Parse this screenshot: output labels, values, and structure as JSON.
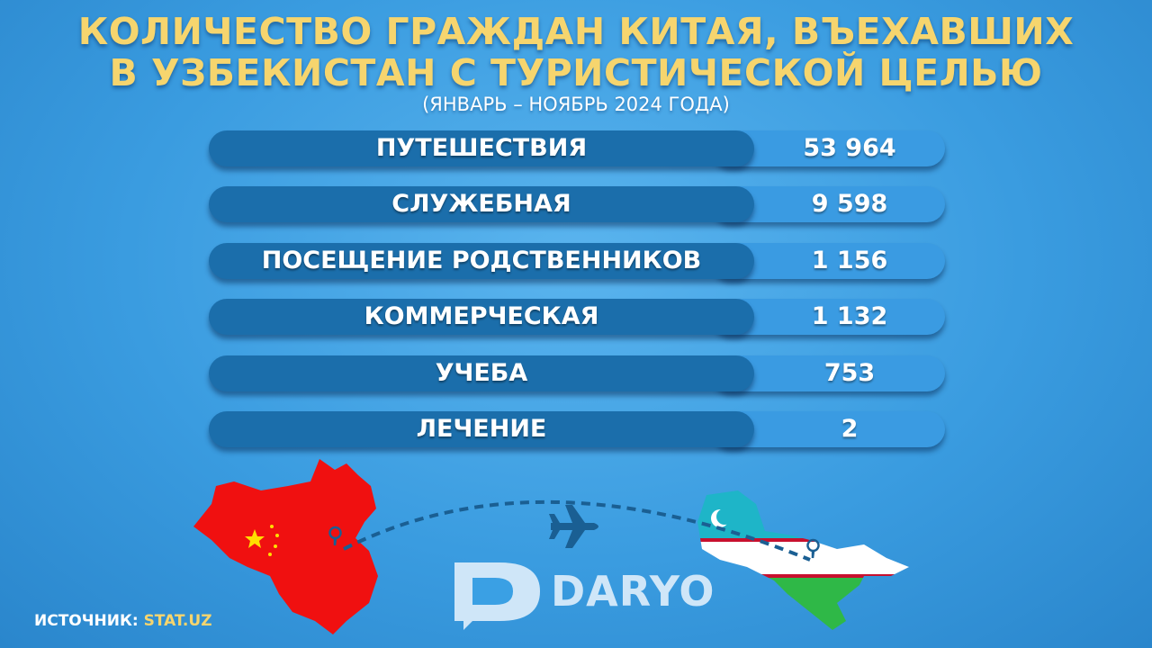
{
  "title_line1": "КОЛИЧЕСТВО ГРАЖДАН КИТАЯ, ВЪЕХАВШИХ",
  "title_line2": "В УЗБЕКИСТАН С ТУРИСТИЧЕСКОЙ ЦЕЛЬЮ",
  "subtitle": "(ЯНВАРЬ – НОЯБРЬ 2024 ГОДА)",
  "chart_data": {
    "type": "table",
    "rows": [
      {
        "label": "ПУТЕШЕСТВИЯ",
        "value": "53 964"
      },
      {
        "label": "СЛУЖЕБНАЯ",
        "value": "9 598"
      },
      {
        "label": "ПОСЕЩЕНИЕ РОДСТВЕННИКОВ",
        "value": "1 156"
      },
      {
        "label": "КОММЕРЧЕСКАЯ",
        "value": "1 132"
      },
      {
        "label": "УЧЕБА",
        "value": "753"
      },
      {
        "label": "ЛЕЧЕНИЕ",
        "value": "2"
      }
    ]
  },
  "source": {
    "label": "ИСТОЧНИК:",
    "value": "STAT.UZ"
  },
  "logo": {
    "text": "DARYO"
  },
  "icons": [
    "china-map",
    "uzbekistan-map",
    "airplane-icon",
    "location-pin-icon",
    "daryo-logo-icon"
  ],
  "colors": {
    "title": "#f6d56e",
    "label_pill": "#1b6eab",
    "value_pill": "#3a9be2",
    "china": "#f01010"
  }
}
